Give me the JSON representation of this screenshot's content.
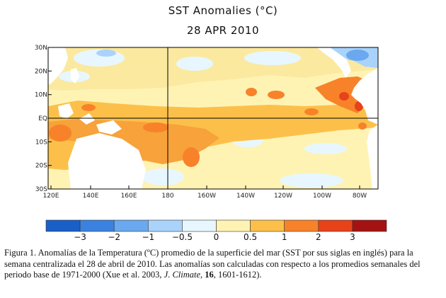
{
  "header": {
    "title": "SST Anomalies (°C)",
    "date": "28 APR 2010"
  },
  "map": {
    "lat_labels": [
      "30N",
      "20N",
      "10N",
      "EQ",
      "10S",
      "20S",
      "30S"
    ],
    "lon_labels": [
      "120E",
      "140E",
      "160E",
      "180",
      "160W",
      "140W",
      "120W",
      "100W",
      "80W"
    ],
    "reference_lines": [
      "EQ",
      "180"
    ]
  },
  "colorbar": {
    "labels": [
      "−3",
      "−2",
      "−1",
      "−0.5",
      "0",
      "0.5",
      "1",
      "2",
      "3"
    ],
    "colors": [
      "#1a5fc7",
      "#3b82e0",
      "#6aa8f0",
      "#a9d3fb",
      "#e8f7ff",
      "#fff3b4",
      "#fcc04a",
      "#f7822a",
      "#e8421a",
      "#a41212"
    ]
  },
  "caption": {
    "prefix": "Figura 1.  Anomalías de la Temperatura (ºC) promedio de la superficie del mar (SST por sus siglas en inglés) para la semana centralizada el 28 de abril de 2010. Las anomalías son calculadas con respecto a los promedios semanales del periodo base de 1971-2000  (Xue et al. 2003, ",
    "journal": "J. Climate",
    "sep": ", ",
    "volume": "16",
    "pages": ", 1601-1612)."
  }
}
